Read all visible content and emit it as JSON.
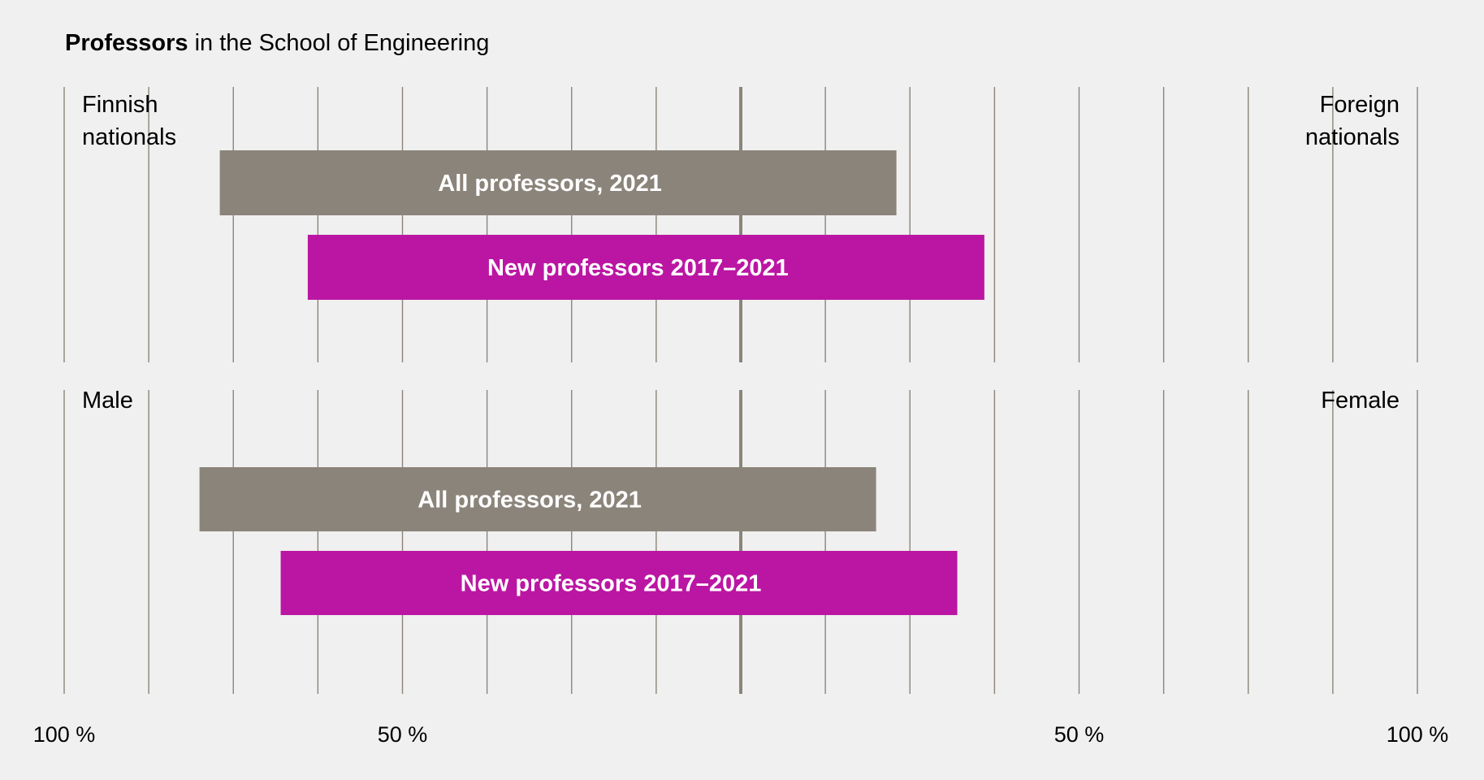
{
  "title": {
    "bold": "Professors",
    "rest": " in the School of Engineering"
  },
  "colors": {
    "background": "#f0f0f0",
    "all_professors": "#8b847a",
    "new_professors": "#bb16a3",
    "gridline": "#8b847a",
    "bar_text": "#ffffff"
  },
  "chart_data": {
    "type": "bar",
    "subtype": "diverging-100%-stacked-horizontal",
    "title": "Professors in the School of Engineering",
    "xlabel": "",
    "ylabel": "",
    "x_ticks": [
      "100 %",
      "50 %",
      "50 %",
      "100 %"
    ],
    "x_tick_values": [
      -100,
      -50,
      50,
      100
    ],
    "xlim": [
      -100,
      100
    ],
    "grid": true,
    "grid_step": 12.5,
    "panels": [
      {
        "name": "nationality",
        "left_label": "Finnish\nnationals",
        "right_label": "Foreign\nnationals",
        "series": [
          {
            "name": "All professors, 2021",
            "left_value": 77,
            "right_value": 23
          },
          {
            "name": "New professors 2017–2021",
            "left_value": 64,
            "right_value": 36
          }
        ]
      },
      {
        "name": "gender",
        "left_label": "Male",
        "right_label": "Female",
        "series": [
          {
            "name": "All professors, 2021",
            "left_value": 80,
            "right_value": 20
          },
          {
            "name": "New professors 2017–2021",
            "left_value": 68,
            "right_value": 32
          }
        ]
      }
    ]
  }
}
